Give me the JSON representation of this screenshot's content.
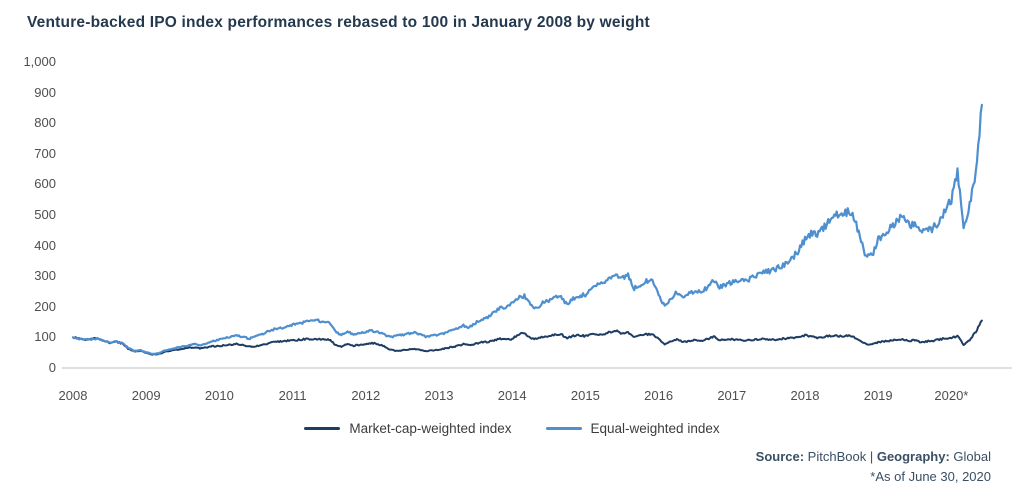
{
  "title": "Venture-backed IPO index performances rebased to 100 in January 2008 by weight",
  "colors": {
    "market_cap_line": "#1f3d63",
    "equal_weighted_line": "#4e8fd0",
    "axis_line": "#d6d6d6",
    "tick_text": "#4f4f4f",
    "title_text": "#24394e",
    "footer_text": "#3a4f63"
  },
  "chart_data": {
    "type": "line",
    "x_unit": "monthly, January 2008 through June 2020",
    "x_tick_labels": [
      "2008",
      "2009",
      "2010",
      "2011",
      "2012",
      "2013",
      "2014",
      "2015",
      "2016",
      "2017",
      "2018",
      "2019",
      "2020*"
    ],
    "y_tick_labels": [
      "1,000",
      "900",
      "800",
      "700",
      "600",
      "500",
      "400",
      "300",
      "200",
      "100",
      "0"
    ],
    "y_tick_values": [
      1000,
      900,
      800,
      700,
      600,
      500,
      400,
      300,
      200,
      100,
      0
    ],
    "ylim": [
      0,
      1000
    ],
    "grid": false,
    "legend_position": "bottom-center",
    "series": [
      {
        "name": "Market-cap-weighted index",
        "color": "#1f3d63",
        "values": [
          100,
          97,
          93,
          95,
          96,
          89,
          83,
          86,
          81,
          64,
          54,
          56,
          50,
          44,
          46,
          52,
          57,
          60,
          63,
          66,
          68,
          64,
          68,
          71,
          72,
          74,
          77,
          79,
          74,
          70,
          71,
          75,
          80,
          85,
          87,
          89,
          90,
          92,
          94,
          95,
          95,
          93,
          93,
          76,
          70,
          79,
          73,
          76,
          79,
          82,
          78,
          72,
          60,
          56,
          58,
          61,
          63,
          59,
          55,
          58,
          60,
          64,
          68,
          72,
          78,
          74,
          80,
          84,
          86,
          90,
          96,
          92,
          95,
          110,
          115,
          99,
          94,
          102,
          105,
          109,
          111,
          97,
          105,
          107,
          104,
          109,
          111,
          109,
          117,
          122,
          112,
          117,
          99,
          107,
          111,
          109,
          94,
          77,
          87,
          94,
          84,
          89,
          91,
          89,
          94,
          103,
          91,
          94,
          94,
          92,
          89,
          91,
          93,
          95,
          94,
          92,
          95,
          97,
          99,
          102,
          107,
          104,
          99,
          102,
          105,
          107,
          103,
          106,
          102,
          89,
          79,
          77,
          84,
          87,
          89,
          92,
          94,
          89,
          91,
          84,
          87,
          89,
          93,
          97,
          99,
          104,
          76,
          92,
          118,
          155
        ]
      },
      {
        "name": "Equal-weighted index",
        "color": "#4e8fd0",
        "values": [
          100,
          96,
          92,
          94,
          96,
          90,
          84,
          87,
          82,
          68,
          56,
          58,
          52,
          45,
          48,
          56,
          62,
          66,
          70,
          74,
          78,
          74,
          80,
          88,
          92,
          97,
          103,
          107,
          100,
          96,
          104,
          111,
          119,
          127,
          131,
          135,
          141,
          146,
          150,
          153,
          156,
          151,
          152,
          119,
          108,
          119,
          110,
          116,
          119,
          123,
          116,
          110,
          101,
          105,
          108,
          112,
          115,
          108,
          102,
          106,
          108,
          115,
          122,
          128,
          138,
          132,
          148,
          156,
          166,
          180,
          196,
          200,
          212,
          230,
          235,
          205,
          194,
          213,
          221,
          229,
          233,
          206,
          228,
          236,
          240,
          256,
          270,
          282,
          298,
          308,
          296,
          301,
          259,
          272,
          283,
          286,
          238,
          200,
          228,
          250,
          229,
          243,
          253,
          249,
          263,
          290,
          263,
          273,
          281,
          286,
          283,
          291,
          301,
          311,
          316,
          321,
          331,
          341,
          361,
          386,
          420,
          441,
          431,
          456,
          481,
          507,
          496,
          511,
          491,
          432,
          362,
          366,
          420,
          441,
          456,
          481,
          500,
          471,
          466,
          441,
          451,
          456,
          481,
          521,
          545,
          650,
          452,
          530,
          645,
          860
        ]
      }
    ]
  },
  "footer": {
    "source_label": "Source:",
    "source_value": " PitchBook",
    "separator": " | ",
    "geography_label": "Geography:",
    "geography_value": " Global",
    "asof_note": "*As of June 30, 2020"
  }
}
